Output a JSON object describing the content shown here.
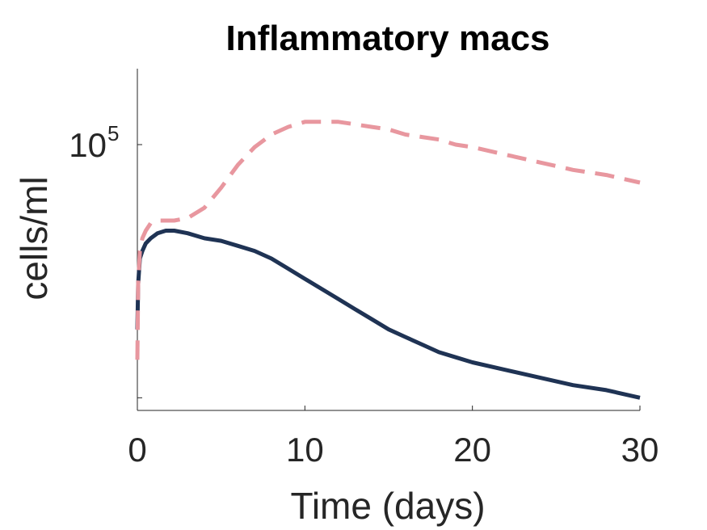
{
  "chart_data": {
    "type": "line",
    "title": "Inflammatory macs",
    "xlabel": "Time (days)",
    "ylabel": "cells/ml",
    "xlim": [
      0,
      30
    ],
    "ylim_log10": [
      3.95,
      5.3
    ],
    "y_scale": "log",
    "x_ticks": [
      {
        "value": 0,
        "label": "0"
      },
      {
        "value": 10,
        "label": "10"
      },
      {
        "value": 20,
        "label": "20"
      },
      {
        "value": 30,
        "label": "30"
      }
    ],
    "y_ticks": [
      {
        "log10": 4,
        "label": ""
      },
      {
        "log10": 5,
        "base": "10",
        "exponent": "5"
      }
    ],
    "grid": false,
    "series": [
      {
        "color": "#1f3354",
        "style": "solid",
        "x": [
          0,
          0.05,
          0.15,
          0.3,
          0.5,
          0.8,
          1.2,
          1.7,
          2.2,
          3,
          4,
          5,
          6,
          7,
          8,
          9,
          10,
          11,
          12,
          13,
          14,
          15,
          16,
          17,
          18,
          19,
          20,
          22,
          24,
          26,
          28,
          30
        ],
        "y_log10": [
          4.27,
          4.45,
          4.55,
          4.58,
          4.61,
          4.63,
          4.65,
          4.66,
          4.66,
          4.65,
          4.63,
          4.62,
          4.6,
          4.58,
          4.55,
          4.51,
          4.47,
          4.43,
          4.39,
          4.35,
          4.31,
          4.27,
          4.24,
          4.21,
          4.18,
          4.16,
          4.14,
          4.11,
          4.08,
          4.05,
          4.03,
          4.0
        ]
      },
      {
        "color": "#e8979f",
        "style": "dashed",
        "x": [
          0,
          0.05,
          0.15,
          0.3,
          0.5,
          0.8,
          1.2,
          1.7,
          2.2,
          3,
          4,
          5,
          6,
          7,
          8,
          9,
          10,
          11,
          12,
          13,
          14,
          15,
          16,
          17,
          18,
          19,
          20,
          22,
          24,
          26,
          28,
          30
        ],
        "y_log10": [
          4.15,
          4.45,
          4.58,
          4.63,
          4.66,
          4.69,
          4.7,
          4.7,
          4.7,
          4.71,
          4.75,
          4.83,
          4.92,
          4.99,
          5.04,
          5.07,
          5.09,
          5.09,
          5.09,
          5.08,
          5.07,
          5.06,
          5.04,
          5.03,
          5.02,
          5.0,
          4.99,
          4.96,
          4.93,
          4.9,
          4.88,
          4.85
        ]
      }
    ]
  }
}
